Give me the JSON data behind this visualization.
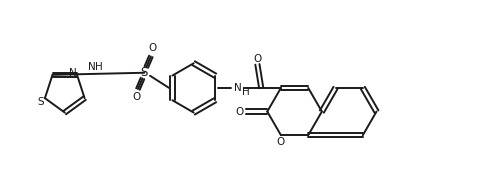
{
  "bg_color": "#ffffff",
  "line_color": "#1a1a1a",
  "line_width": 1.4,
  "font_size": 7.5,
  "fig_width": 4.86,
  "fig_height": 1.91,
  "dpi": 100,
  "xlim": [
    0,
    12
  ],
  "ylim": [
    0,
    5
  ]
}
